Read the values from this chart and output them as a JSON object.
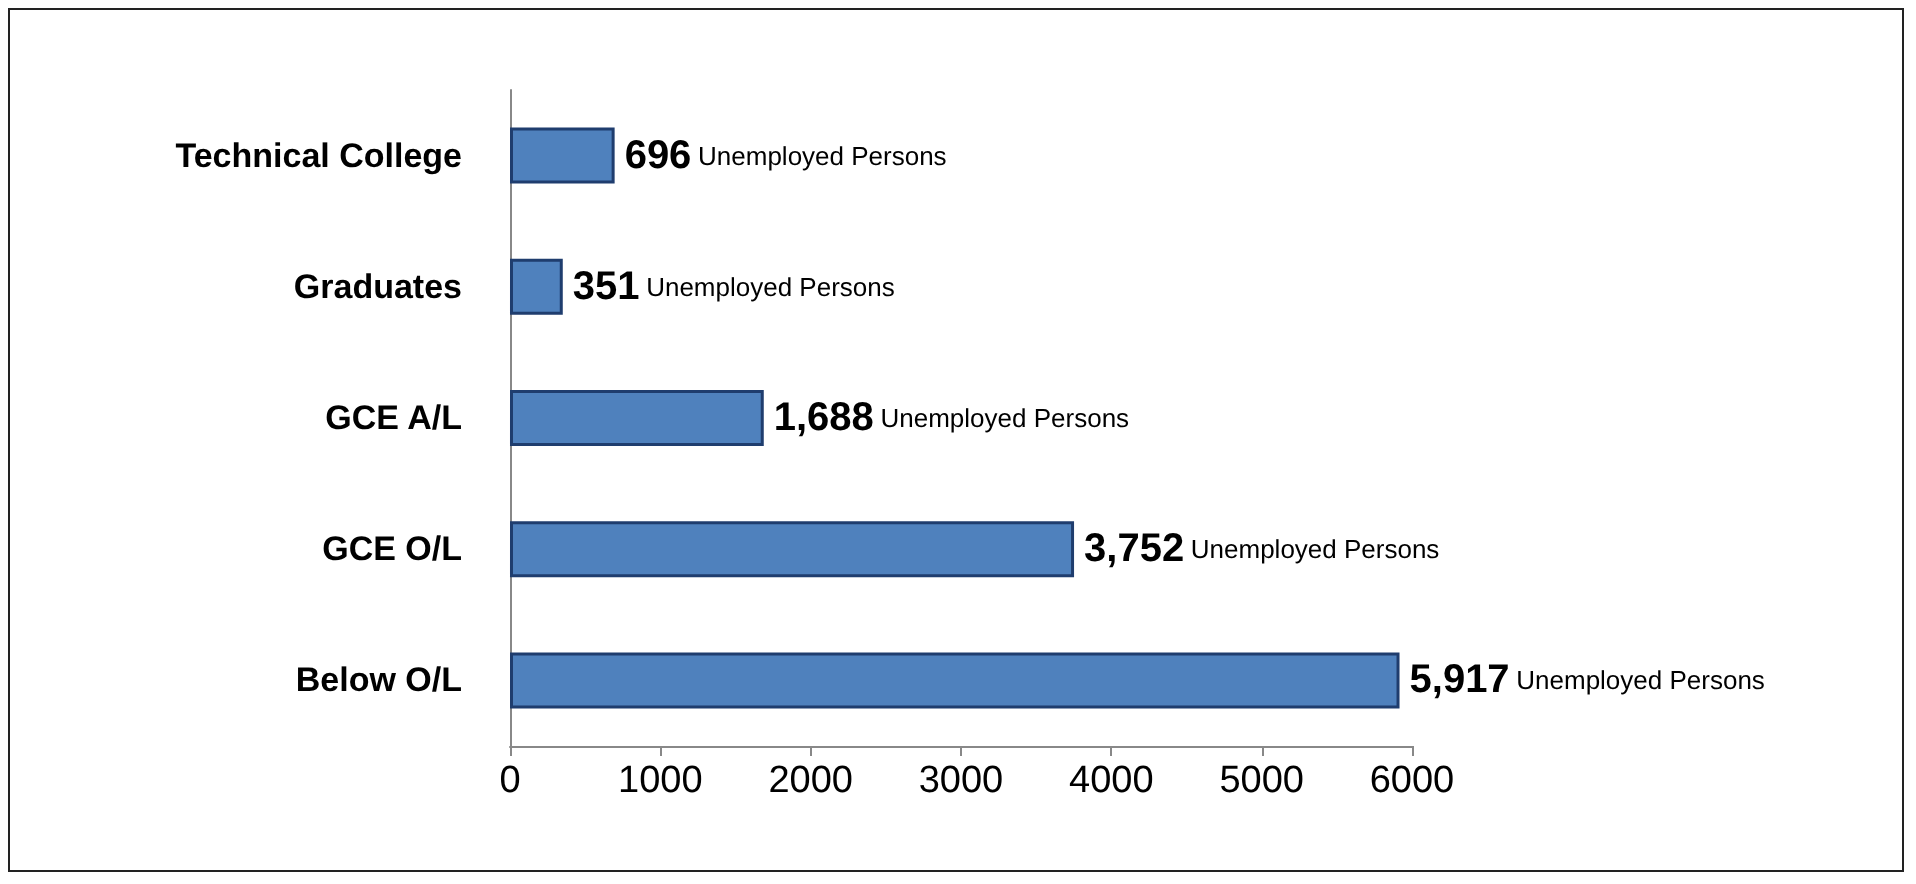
{
  "chart_data": {
    "type": "bar",
    "orientation": "horizontal",
    "categories": [
      "Technical College",
      "Graduates",
      "GCE A/L",
      "GCE O/L",
      "Below O/L"
    ],
    "values": [
      696,
      351,
      1688,
      3752,
      5917
    ],
    "value_labels": [
      "696 Unemployed Persons",
      "351 Unemployed Persons",
      "1,688 Unemployed Persons",
      "3,752 Unemployed Persons",
      "5,917 Unemployed Persons"
    ],
    "color": "#4f81bd",
    "xlim": [
      0,
      6000
    ],
    "xticks": [
      0,
      1000,
      2000,
      3000,
      4000,
      5000,
      6000
    ],
    "grid": false
  }
}
